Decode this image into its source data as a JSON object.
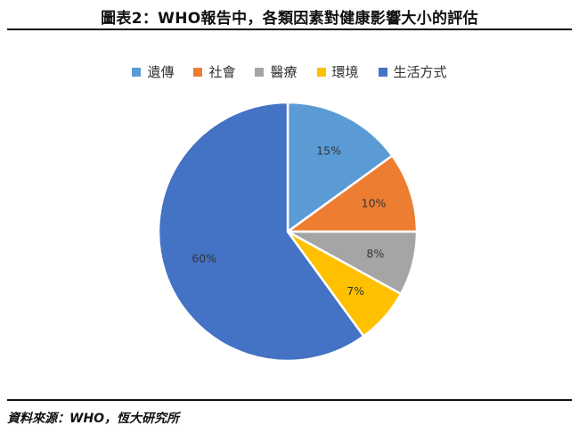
{
  "title": "圖表2：WHO報告中，各類因素對健康影響大小的評估",
  "source": "資料來源：WHO，恆大研究所",
  "chart_data": {
    "type": "pie",
    "categories": [
      "遺傳",
      "社會",
      "醫療",
      "環境",
      "生活方式"
    ],
    "values": [
      15,
      10,
      8,
      7,
      60
    ],
    "value_labels": [
      "15%",
      "10%",
      "8%",
      "7%",
      "60%"
    ],
    "colors": [
      "#5B9BD5",
      "#ED7D31",
      "#A5A5A5",
      "#FFC000",
      "#4472C4"
    ],
    "start_angle_deg": 0,
    "direction": "clockwise",
    "legend_position": "top"
  }
}
